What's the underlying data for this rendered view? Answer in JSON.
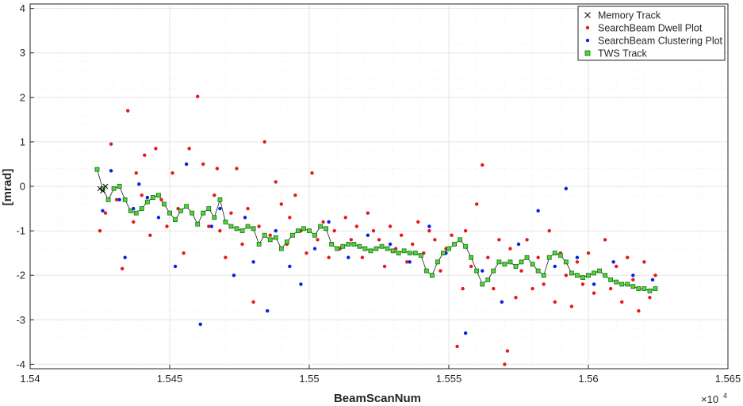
{
  "chart_data": {
    "type": "scatter",
    "xlabel": "BeamScanNum",
    "ylabel": "[mrad]",
    "x_multiplier": "×10",
    "x_multiplier_exp": "4",
    "xlim": [
      1.54,
      1.565
    ],
    "ylim": [
      -4.1,
      4.1
    ],
    "x_ticks": [
      1.54,
      1.545,
      1.55,
      1.555,
      1.56,
      1.565
    ],
    "x_tick_labels": [
      "1.54",
      "1.545",
      "1.55",
      "1.555",
      "1.56",
      "1.565"
    ],
    "y_ticks": [
      -4,
      -3,
      -2,
      -1,
      0,
      1,
      2,
      3,
      4
    ],
    "y_tick_labels": [
      "-4",
      "-3",
      "-2",
      "-1",
      "0",
      "1",
      "2",
      "3",
      "4"
    ],
    "grid": true,
    "minor_grid": true,
    "legend_position": "top-right",
    "colors": {
      "memory": "#000000",
      "dwell": "#e41a1c",
      "cluster": "#0a1fe6",
      "tws_line": "#1a1a1a",
      "tws_fill": "#4cd63a",
      "tws_edge": "#1a6d10",
      "grid": "#e6e6e6"
    },
    "series": [
      {
        "name": "Memory Track",
        "marker": "x",
        "x": [
          1.5425,
          1.5426,
          1.5427
        ],
        "y": [
          -0.05,
          -0.1,
          0.0
        ]
      },
      {
        "name": "SearchBeam Dwell Plot",
        "marker": "dot",
        "x": [
          1.5425,
          1.5427,
          1.5429,
          1.5431,
          1.5433,
          1.5435,
          1.5437,
          1.5438,
          1.544,
          1.5441,
          1.5443,
          1.5445,
          1.5447,
          1.5449,
          1.5451,
          1.5453,
          1.5455,
          1.5457,
          1.5458,
          1.546,
          1.5462,
          1.5464,
          1.5466,
          1.5467,
          1.5468,
          1.547,
          1.5472,
          1.5474,
          1.5476,
          1.5478,
          1.548,
          1.5482,
          1.5484,
          1.5486,
          1.5488,
          1.549,
          1.5492,
          1.5493,
          1.5495,
          1.5497,
          1.5499,
          1.5501,
          1.5503,
          1.5505,
          1.5507,
          1.5509,
          1.5511,
          1.5513,
          1.5515,
          1.5517,
          1.5519,
          1.5521,
          1.5523,
          1.5525,
          1.5527,
          1.5529,
          1.5531,
          1.5533,
          1.5535,
          1.5537,
          1.5539,
          1.5541,
          1.5543,
          1.5545,
          1.5547,
          1.5549,
          1.5551,
          1.5553,
          1.5555,
          1.5556,
          1.5558,
          1.556,
          1.5562,
          1.5564,
          1.5566,
          1.5568,
          1.557,
          1.5571,
          1.5572,
          1.5574,
          1.5576,
          1.5578,
          1.558,
          1.5582,
          1.5584,
          1.5586,
          1.5588,
          1.559,
          1.5592,
          1.5594,
          1.5596,
          1.5598,
          1.56,
          1.5602,
          1.5604,
          1.5606,
          1.5608,
          1.561,
          1.5612,
          1.5614,
          1.5616,
          1.5618,
          1.562,
          1.5622,
          1.5624
        ],
        "y": [
          -1.0,
          -0.6,
          0.95,
          -0.3,
          -1.85,
          1.7,
          -0.8,
          0.3,
          -0.2,
          0.7,
          -1.1,
          0.85,
          -0.3,
          -0.9,
          0.3,
          -0.5,
          -1.5,
          0.85,
          -0.6,
          2.02,
          0.5,
          -0.9,
          -0.2,
          0.4,
          -1.0,
          -1.6,
          -0.6,
          0.4,
          -1.3,
          -0.5,
          -2.6,
          -0.9,
          1.0,
          -1.1,
          0.1,
          -0.4,
          -1.3,
          -0.7,
          -0.2,
          -1.0,
          -1.5,
          0.3,
          -1.2,
          -0.8,
          -1.6,
          -1.0,
          -1.4,
          -0.7,
          -1.2,
          -0.9,
          -1.6,
          -0.6,
          -1.0,
          -1.2,
          -1.8,
          -0.9,
          -1.4,
          -1.1,
          -1.7,
          -1.3,
          -0.8,
          -1.5,
          -1.0,
          -1.2,
          -1.9,
          -1.4,
          -1.1,
          -3.6,
          -2.3,
          -1.0,
          -1.8,
          -0.4,
          0.48,
          -1.6,
          -2.3,
          -1.2,
          -4.0,
          -3.7,
          -1.4,
          -2.5,
          -1.9,
          -1.2,
          -2.3,
          -1.6,
          -2.2,
          -1.0,
          -2.6,
          -1.5,
          -2.0,
          -2.7,
          -1.7,
          -2.2,
          -1.5,
          -2.4,
          -1.9,
          -1.2,
          -2.3,
          -1.8,
          -2.6,
          -1.6,
          -2.1,
          -2.8,
          -1.7,
          -2.5,
          -2.0
        ]
      },
      {
        "name": "SearchBeam Clustering Plot",
        "marker": "dot",
        "x": [
          1.5426,
          1.5429,
          1.5432,
          1.5434,
          1.5437,
          1.5439,
          1.5442,
          1.5446,
          1.5452,
          1.5456,
          1.5461,
          1.5465,
          1.5468,
          1.5473,
          1.5477,
          1.548,
          1.5485,
          1.5488,
          1.5493,
          1.5497,
          1.5502,
          1.5507,
          1.5514,
          1.5521,
          1.5529,
          1.5536,
          1.5543,
          1.5549,
          1.5556,
          1.5562,
          1.5569,
          1.5575,
          1.5582,
          1.5588,
          1.5592,
          1.5596,
          1.5602,
          1.5609,
          1.5616,
          1.5623
        ],
        "y": [
          -0.55,
          0.35,
          -0.3,
          -1.6,
          -0.5,
          0.05,
          -0.25,
          -0.7,
          -1.8,
          0.5,
          -3.1,
          -0.9,
          -0.5,
          -2.0,
          -0.7,
          -1.7,
          -2.8,
          -1.0,
          -1.8,
          -2.2,
          -1.4,
          -0.8,
          -1.6,
          -1.1,
          -1.3,
          -1.7,
          -0.9,
          -1.5,
          -3.3,
          -1.9,
          -2.6,
          -1.3,
          -0.55,
          -1.8,
          -0.05,
          -1.6,
          -2.2,
          -1.7,
          -2.0,
          -2.1
        ]
      },
      {
        "name": "TWS Track",
        "marker": "square",
        "x": [
          1.5424,
          1.5426,
          1.5428,
          1.543,
          1.5432,
          1.5434,
          1.5436,
          1.5438,
          1.544,
          1.5442,
          1.5444,
          1.5446,
          1.5448,
          1.545,
          1.5452,
          1.5454,
          1.5456,
          1.5458,
          1.546,
          1.5462,
          1.5464,
          1.5466,
          1.5468,
          1.547,
          1.5472,
          1.5474,
          1.5476,
          1.5478,
          1.548,
          1.5482,
          1.5484,
          1.5486,
          1.5488,
          1.549,
          1.5492,
          1.5494,
          1.5496,
          1.5498,
          1.55,
          1.5502,
          1.5504,
          1.5506,
          1.5508,
          1.551,
          1.5512,
          1.5514,
          1.5516,
          1.5518,
          1.552,
          1.5522,
          1.5524,
          1.5526,
          1.5528,
          1.553,
          1.5532,
          1.5534,
          1.5536,
          1.5538,
          1.554,
          1.5542,
          1.5544,
          1.5546,
          1.5548,
          1.555,
          1.5552,
          1.5554,
          1.5556,
          1.5558,
          1.556,
          1.5562,
          1.5564,
          1.5566,
          1.5568,
          1.557,
          1.5572,
          1.5574,
          1.5576,
          1.5578,
          1.558,
          1.5582,
          1.5584,
          1.5586,
          1.5588,
          1.559,
          1.5592,
          1.5594,
          1.5596,
          1.5598,
          1.56,
          1.5602,
          1.5604,
          1.5606,
          1.5608,
          1.561,
          1.5612,
          1.5614,
          1.5616,
          1.5618,
          1.562,
          1.5622,
          1.5624
        ],
        "y": [
          0.38,
          -0.05,
          -0.3,
          -0.05,
          0.0,
          -0.3,
          -0.55,
          -0.6,
          -0.5,
          -0.35,
          -0.25,
          -0.2,
          -0.4,
          -0.6,
          -0.75,
          -0.55,
          -0.45,
          -0.6,
          -0.85,
          -0.6,
          -0.5,
          -0.7,
          -0.3,
          -0.8,
          -0.9,
          -0.95,
          -1.0,
          -0.9,
          -0.95,
          -1.3,
          -1.1,
          -1.2,
          -1.15,
          -1.4,
          -1.25,
          -1.1,
          -1.0,
          -0.95,
          -1.0,
          -1.1,
          -0.9,
          -0.95,
          -1.3,
          -1.4,
          -1.35,
          -1.3,
          -1.3,
          -1.35,
          -1.4,
          -1.45,
          -1.4,
          -1.35,
          -1.4,
          -1.45,
          -1.5,
          -1.45,
          -1.5,
          -1.5,
          -1.55,
          -1.9,
          -2.0,
          -1.7,
          -1.5,
          -1.4,
          -1.3,
          -1.2,
          -1.35,
          -1.6,
          -1.9,
          -2.2,
          -2.1,
          -1.9,
          -1.7,
          -1.75,
          -1.7,
          -1.8,
          -1.7,
          -1.6,
          -1.75,
          -1.9,
          -2.0,
          -1.6,
          -1.5,
          -1.55,
          -1.7,
          -1.95,
          -2.0,
          -2.05,
          -2.0,
          -1.95,
          -1.9,
          -2.0,
          -2.1,
          -2.15,
          -2.2,
          -2.2,
          -2.25,
          -2.3,
          -2.3,
          -2.35,
          -2.3
        ]
      }
    ]
  }
}
